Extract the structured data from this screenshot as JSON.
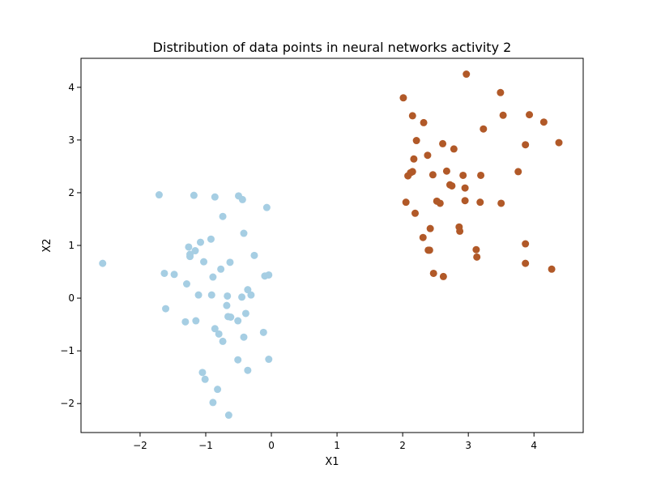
{
  "chart_data": {
    "type": "scatter",
    "title": "Distribution of data points in neural networks activity 2",
    "xlabel": "X1",
    "ylabel": "X2",
    "xlim": [
      -2.9,
      4.75
    ],
    "ylim": [
      -2.55,
      4.55
    ],
    "xticks": [
      -2,
      -1,
      0,
      1,
      2,
      3,
      4
    ],
    "yticks": [
      -2,
      -1,
      0,
      1,
      2,
      3,
      4
    ],
    "grid": false,
    "legend": "none",
    "series": [
      {
        "color": "#a6cee3",
        "points": [
          [
            -2.57,
            0.66
          ],
          [
            -1.71,
            1.96
          ],
          [
            -1.18,
            1.95
          ],
          [
            -0.86,
            1.92
          ],
          [
            -0.5,
            1.94
          ],
          [
            -0.44,
            1.87
          ],
          [
            -0.07,
            1.72
          ],
          [
            -0.74,
            1.55
          ],
          [
            -0.42,
            1.23
          ],
          [
            -0.92,
            1.12
          ],
          [
            -1.08,
            1.06
          ],
          [
            -1.26,
            0.97
          ],
          [
            -1.16,
            0.9
          ],
          [
            -1.24,
            0.83
          ],
          [
            -1.24,
            0.79
          ],
          [
            -0.26,
            0.81
          ],
          [
            -1.03,
            0.69
          ],
          [
            -0.63,
            0.68
          ],
          [
            -1.63,
            0.47
          ],
          [
            -1.48,
            0.45
          ],
          [
            -0.77,
            0.55
          ],
          [
            -0.1,
            0.42
          ],
          [
            -0.04,
            0.44
          ],
          [
            -0.89,
            0.4
          ],
          [
            -1.29,
            0.27
          ],
          [
            -0.36,
            0.16
          ],
          [
            -1.11,
            0.06
          ],
          [
            -0.91,
            0.06
          ],
          [
            -0.67,
            0.04
          ],
          [
            -0.45,
            0.02
          ],
          [
            -0.31,
            0.06
          ],
          [
            -0.68,
            -0.14
          ],
          [
            -1.61,
            -0.2
          ],
          [
            -0.39,
            -0.29
          ],
          [
            -0.66,
            -0.35
          ],
          [
            -0.62,
            -0.36
          ],
          [
            -0.51,
            -0.43
          ],
          [
            -1.31,
            -0.45
          ],
          [
            -1.15,
            -0.43
          ],
          [
            -0.86,
            -0.58
          ],
          [
            -0.8,
            -0.68
          ],
          [
            -0.12,
            -0.65
          ],
          [
            -0.42,
            -0.74
          ],
          [
            -0.74,
            -0.82
          ],
          [
            -0.51,
            -1.17
          ],
          [
            -0.04,
            -1.16
          ],
          [
            -0.36,
            -1.37
          ],
          [
            -1.05,
            -1.41
          ],
          [
            -1.01,
            -1.54
          ],
          [
            -0.82,
            -1.73
          ],
          [
            -0.89,
            -1.98
          ],
          [
            -0.65,
            -2.22
          ]
        ]
      },
      {
        "color": "#b15928",
        "points": [
          [
            2.97,
            4.25
          ],
          [
            3.49,
            3.9
          ],
          [
            3.93,
            3.48
          ],
          [
            3.53,
            3.47
          ],
          [
            2.15,
            3.46
          ],
          [
            2.32,
            3.33
          ],
          [
            4.15,
            3.34
          ],
          [
            3.23,
            3.21
          ],
          [
            2.01,
            3.8
          ],
          [
            2.21,
            2.99
          ],
          [
            4.38,
            2.95
          ],
          [
            2.61,
            2.93
          ],
          [
            3.87,
            2.91
          ],
          [
            2.78,
            2.83
          ],
          [
            2.38,
            2.71
          ],
          [
            2.17,
            2.64
          ],
          [
            2.67,
            2.41
          ],
          [
            3.76,
            2.4
          ],
          [
            2.15,
            2.4
          ],
          [
            2.12,
            2.38
          ],
          [
            2.08,
            2.32
          ],
          [
            2.46,
            2.34
          ],
          [
            2.92,
            2.33
          ],
          [
            3.19,
            2.33
          ],
          [
            2.72,
            2.15
          ],
          [
            2.75,
            2.13
          ],
          [
            2.95,
            2.09
          ],
          [
            2.05,
            1.82
          ],
          [
            2.52,
            1.84
          ],
          [
            2.57,
            1.8
          ],
          [
            2.95,
            1.85
          ],
          [
            3.18,
            1.82
          ],
          [
            3.5,
            1.8
          ],
          [
            2.19,
            1.61
          ],
          [
            2.42,
            1.32
          ],
          [
            2.86,
            1.35
          ],
          [
            2.87,
            1.27
          ],
          [
            2.31,
            1.15
          ],
          [
            3.87,
            1.03
          ],
          [
            2.39,
            0.91
          ],
          [
            2.41,
            0.91
          ],
          [
            3.12,
            0.92
          ],
          [
            3.13,
            0.78
          ],
          [
            3.87,
            0.66
          ],
          [
            4.27,
            0.55
          ],
          [
            2.47,
            0.47
          ],
          [
            2.62,
            0.41
          ]
        ]
      }
    ]
  }
}
